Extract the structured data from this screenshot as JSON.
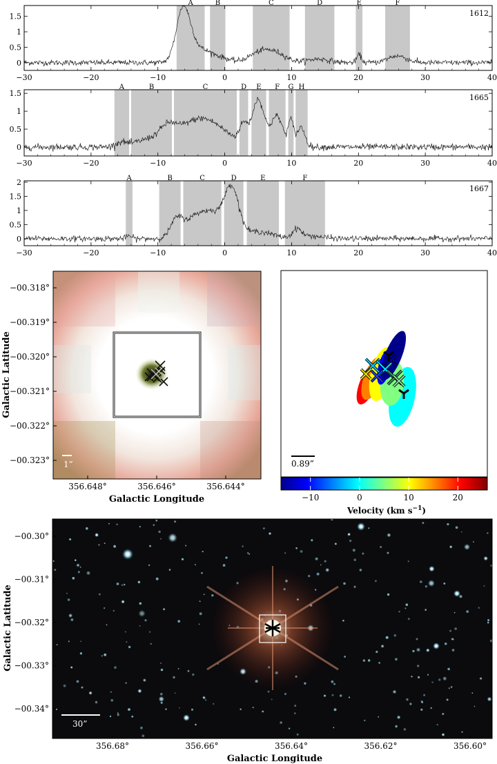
{
  "spectra": [
    {
      "label": "1612",
      "ylim": [
        -0.25,
        1.85
      ],
      "yticks": [
        0,
        0.5,
        1,
        1.5
      ],
      "xlim": [
        -30,
        40
      ],
      "xticks": [
        -30,
        -20,
        -10,
        0,
        10,
        20,
        30,
        40
      ],
      "regions": [
        {
          "name": "A",
          "range": [
            -7.2,
            -3.0
          ]
        },
        {
          "name": "B",
          "range": [
            -2.2,
            0.1
          ]
        },
        {
          "name": "C",
          "range": [
            4.2,
            9.7
          ]
        },
        {
          "name": "D",
          "range": [
            12.0,
            16.4
          ]
        },
        {
          "name": "E",
          "range": [
            19.6,
            20.6
          ]
        },
        {
          "name": "F",
          "range": [
            24.0,
            27.7
          ]
        }
      ],
      "components": [
        {
          "center": -6.3,
          "width": 1.0,
          "amp": 1.55
        },
        {
          "center": -4.8,
          "width": 1.3,
          "amp": 0.55
        },
        {
          "center": -2.4,
          "width": 1.0,
          "amp": 0.22
        },
        {
          "center": -0.5,
          "width": 1.2,
          "amp": 0.15
        },
        {
          "center": 5.5,
          "width": 1.8,
          "amp": 0.35
        },
        {
          "center": 8.0,
          "width": 1.5,
          "amp": 0.2
        },
        {
          "center": 14.0,
          "width": 1.6,
          "amp": 0.12
        },
        {
          "center": 20.1,
          "width": 0.35,
          "amp": 0.25
        },
        {
          "center": 25.8,
          "width": 1.4,
          "amp": 0.22
        }
      ],
      "noise": 0.045
    },
    {
      "label": "1665",
      "ylim": [
        -0.25,
        1.6
      ],
      "yticks": [
        0,
        0.5,
        1,
        1.5
      ],
      "xlim": [
        -30,
        40
      ],
      "xticks": [
        -30,
        -20,
        -10,
        0,
        10,
        20,
        30,
        40
      ],
      "regions": [
        {
          "name": "A",
          "range": [
            -16.5,
            -14.3
          ]
        },
        {
          "name": "B",
          "range": [
            -14.0,
            -7.9
          ]
        },
        {
          "name": "C",
          "range": [
            -7.6,
            1.8
          ]
        },
        {
          "name": "D",
          "range": [
            2.2,
            3.5
          ]
        },
        {
          "name": "E",
          "range": [
            4.0,
            6.2
          ]
        },
        {
          "name": "F",
          "range": [
            6.6,
            9.1
          ]
        },
        {
          "name": "G",
          "range": [
            9.5,
            10.3
          ]
        },
        {
          "name": "H",
          "range": [
            10.6,
            12.4
          ]
        }
      ],
      "components": [
        {
          "center": -15.5,
          "width": 0.8,
          "amp": 0.12
        },
        {
          "center": -11.5,
          "width": 2.0,
          "amp": 0.18
        },
        {
          "center": -8.5,
          "width": 1.2,
          "amp": 0.35
        },
        {
          "center": -3.5,
          "width": 3.4,
          "amp": 0.8
        },
        {
          "center": 2.8,
          "width": 0.6,
          "amp": 0.5
        },
        {
          "center": 5.0,
          "width": 0.9,
          "amp": 1.3
        },
        {
          "center": 7.8,
          "width": 0.9,
          "amp": 0.85
        },
        {
          "center": 9.9,
          "width": 0.4,
          "amp": 0.7
        },
        {
          "center": 11.4,
          "width": 0.6,
          "amp": 0.55
        }
      ],
      "noise": 0.045
    },
    {
      "label": "1667",
      "ylim": [
        -0.25,
        2.05
      ],
      "yticks": [
        0,
        0.5,
        1,
        1.5,
        2
      ],
      "xlim": [
        -30,
        40
      ],
      "xticks": [
        -30,
        -20,
        -10,
        0,
        10,
        20,
        30,
        40
      ],
      "regions": [
        {
          "name": "A",
          "range": [
            -14.8,
            -13.8
          ]
        },
        {
          "name": "B",
          "range": [
            -9.8,
            -6.6
          ]
        },
        {
          "name": "C",
          "range": [
            -6.2,
            -0.5
          ]
        },
        {
          "name": "D",
          "range": [
            -0.1,
            2.8
          ]
        },
        {
          "name": "E",
          "range": [
            3.3,
            8.1
          ]
        },
        {
          "name": "F",
          "range": [
            9.0,
            15.0
          ]
        }
      ],
      "components": [
        {
          "center": -14.3,
          "width": 0.4,
          "amp": 0.1
        },
        {
          "center": -7.2,
          "width": 0.9,
          "amp": 0.6
        },
        {
          "center": -4.0,
          "width": 1.8,
          "amp": 0.85
        },
        {
          "center": -1.5,
          "width": 1.2,
          "amp": 0.55
        },
        {
          "center": 1.0,
          "width": 1.1,
          "amp": 1.8
        },
        {
          "center": 5.0,
          "width": 2.0,
          "amp": 0.25
        },
        {
          "center": 10.8,
          "width": 0.6,
          "amp": 0.3
        },
        {
          "center": 12.5,
          "width": 2.0,
          "amp": 0.1
        }
      ],
      "noise": 0.05
    }
  ],
  "chart_data": [
    {
      "type": "line",
      "label": "1612",
      "xlim": [
        -30,
        40
      ],
      "regions": [
        "A",
        "B",
        "C",
        "D",
        "E",
        "F"
      ],
      "peaks": [
        {
          "x": -6.3,
          "y": 1.55
        },
        {
          "x": 5.5,
          "y": 0.35
        },
        {
          "x": 20.1,
          "y": 0.25
        },
        {
          "x": 25.8,
          "y": 0.22
        }
      ]
    },
    {
      "type": "line",
      "label": "1665",
      "xlim": [
        -30,
        40
      ],
      "regions": [
        "A",
        "B",
        "C",
        "D",
        "E",
        "F",
        "G",
        "H"
      ],
      "peaks": [
        {
          "x": -3.5,
          "y": 0.8
        },
        {
          "x": 5.0,
          "y": 1.3
        },
        {
          "x": 7.8,
          "y": 0.85
        },
        {
          "x": 9.9,
          "y": 0.7
        }
      ]
    },
    {
      "type": "line",
      "label": "1667",
      "xlim": [
        -30,
        40
      ],
      "regions": [
        "A",
        "B",
        "C",
        "D",
        "E",
        "F"
      ],
      "peaks": [
        {
          "x": -7.2,
          "y": 0.6
        },
        {
          "x": -4.0,
          "y": 0.85
        },
        {
          "x": 1.0,
          "y": 1.8
        },
        {
          "x": 10.8,
          "y": 0.3
        }
      ]
    }
  ],
  "image_left": {
    "ylabel": "Galactic Latitude",
    "xlabel": "Galactic Longitude",
    "yticks": [
      "−00.318°",
      "−00.319°",
      "−00.320°",
      "−00.321°",
      "−00.322°",
      "−00.323°"
    ],
    "xticks": [
      "356.648°",
      "356.646°",
      "356.644°"
    ],
    "scalebar": "1”"
  },
  "image_right": {
    "scalebar": "0.89”",
    "colorbar_label": "Velocity (km s",
    "colorbar_sup": "−1",
    "colorbar_close": ")",
    "colorbar_ticks": [
      "−10",
      "0",
      "10",
      "20"
    ],
    "colorbar_range": [
      -16,
      26
    ],
    "colorbar_tick_values": [
      -10,
      0,
      10,
      20
    ],
    "colorbar_stops": [
      "#00008b",
      "#0000ff",
      "#0080ff",
      "#00ffff",
      "#80ff80",
      "#ffff00",
      "#ff8000",
      "#ff0000",
      "#800000"
    ],
    "ellipses": [
      {
        "color": "#00008b",
        "v": -15
      },
      {
        "color": "#0000ff",
        "v": -10
      },
      {
        "color": "#00ffff",
        "v": 1
      },
      {
        "color": "#80ff80",
        "v": 6
      },
      {
        "color": "#ffff00",
        "v": 12
      },
      {
        "color": "#ff8000",
        "v": 18
      },
      {
        "color": "#ff0000",
        "v": 22
      }
    ]
  },
  "image_bottom": {
    "ylabel": "Galactic Latitude",
    "xlabel": "Galactic Longitude",
    "yticks": [
      "−00.30°",
      "−00.31°",
      "−00.32°",
      "−00.33°",
      "−00.34°"
    ],
    "xticks": [
      "356.68°",
      "356.66°",
      "356.64°",
      "356.62°",
      "356.60°"
    ],
    "scalebar": "30”"
  }
}
